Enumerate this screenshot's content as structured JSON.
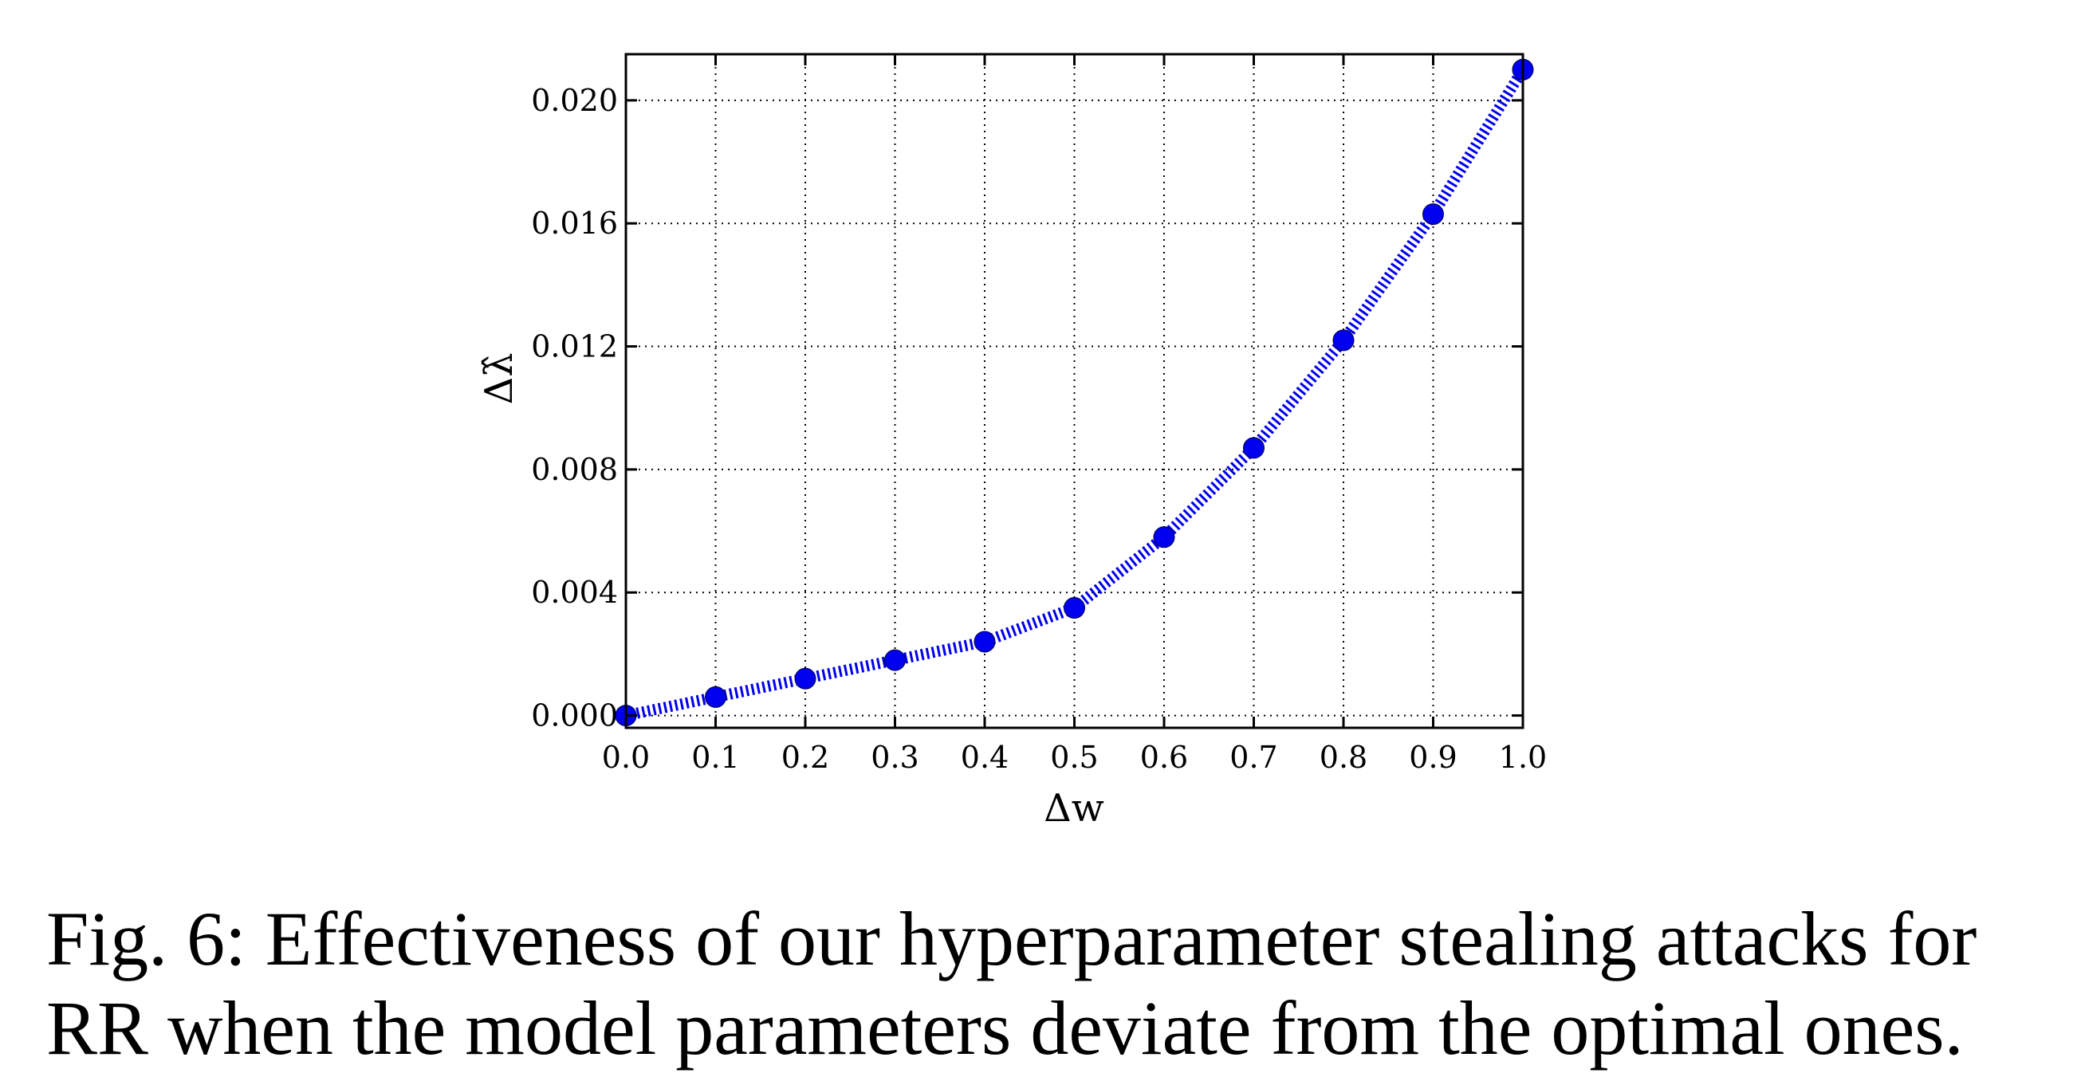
{
  "chart_data": {
    "type": "line",
    "xlabel": "Δw",
    "ylabel": "Δλ̂",
    "x": [
      0.0,
      0.1,
      0.2,
      0.3,
      0.4,
      0.5,
      0.6,
      0.7,
      0.8,
      0.9,
      1.0
    ],
    "series": [
      {
        "values": [
          0.0,
          0.0006,
          0.0012,
          0.0018,
          0.0024,
          0.0035,
          0.0058,
          0.0087,
          0.0122,
          0.0163,
          0.021
        ],
        "color": "#0000ee",
        "marker": "circle",
        "line_style": "dotted"
      }
    ],
    "xticks": [
      "0.0",
      "0.1",
      "0.2",
      "0.3",
      "0.4",
      "0.5",
      "0.6",
      "0.7",
      "0.8",
      "0.9",
      "1.0"
    ],
    "yticks": [
      "0.000",
      "0.004",
      "0.008",
      "0.012",
      "0.016",
      "0.020"
    ],
    "xlim": [
      0.0,
      1.0
    ],
    "ylim": [
      -0.0004,
      0.0215
    ],
    "grid": true
  },
  "caption": {
    "line1": "Fig. 6: Effectiveness of our hyperparameter stealing attacks for",
    "line2": "RR when the model parameters deviate from the optimal ones."
  }
}
